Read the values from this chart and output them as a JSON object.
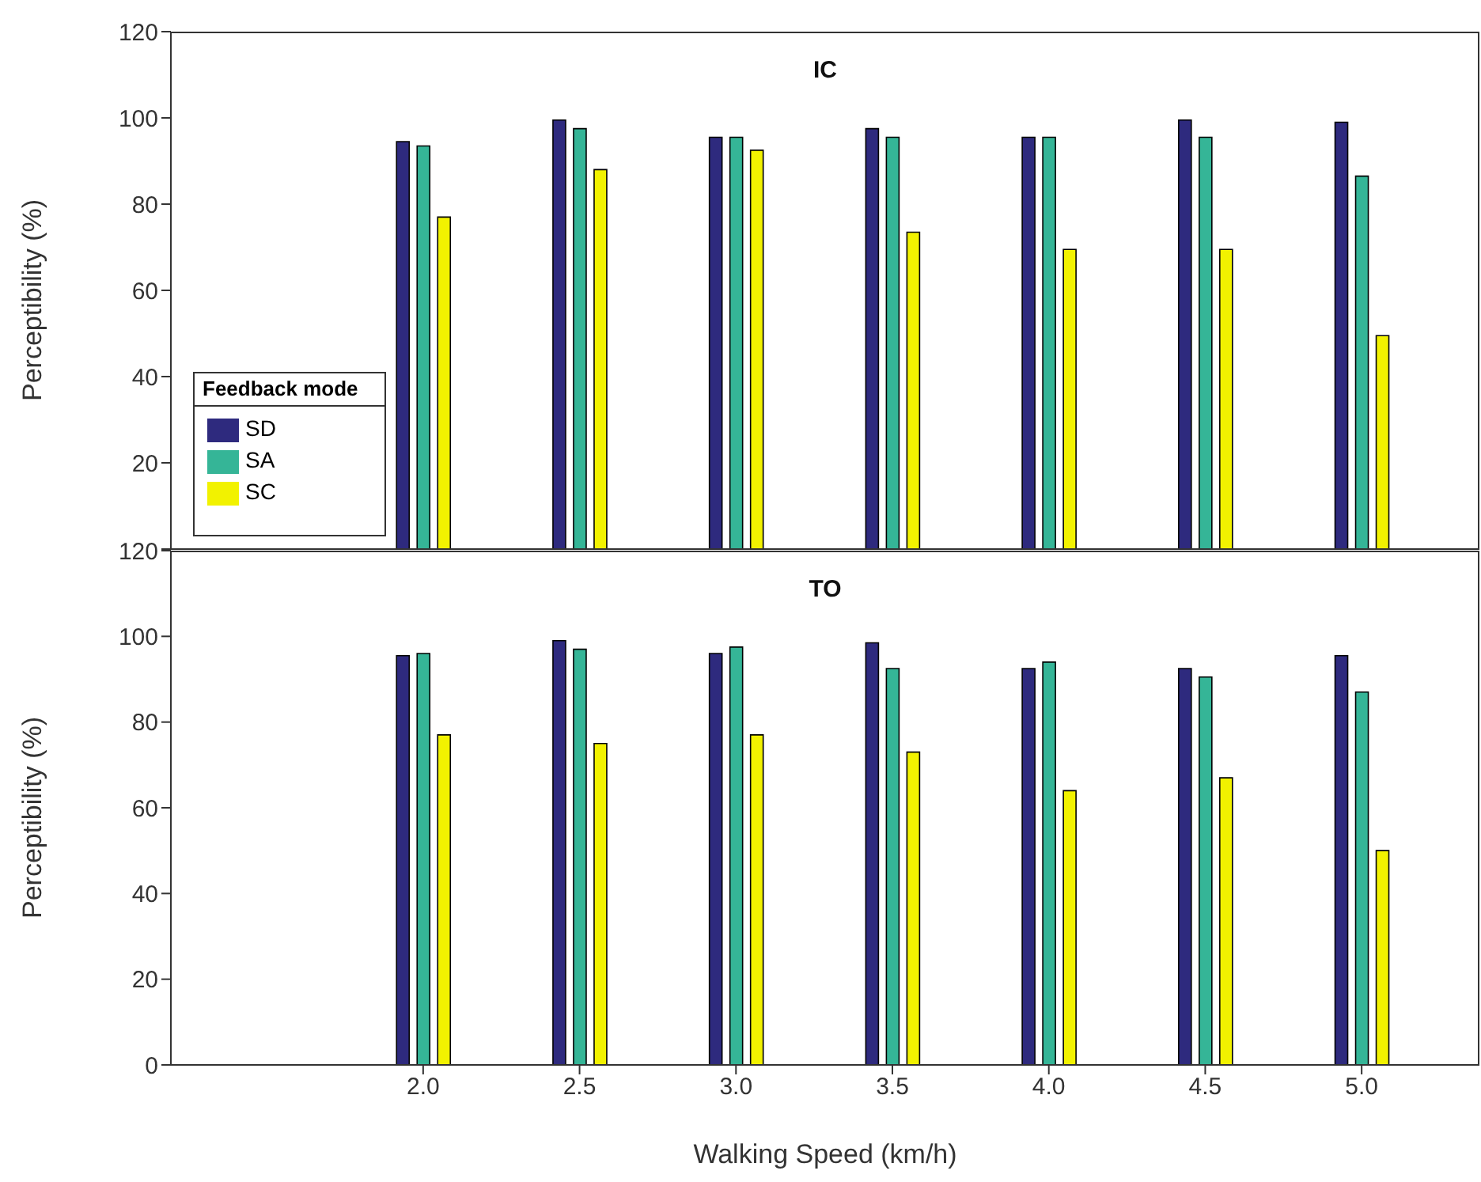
{
  "chart_data": [
    {
      "type": "bar",
      "title": "IC",
      "ylabel": "Perceptibility (%)",
      "legend_title": "Feedback mode",
      "legend": "bottom left",
      "tick_labels": "y",
      "categories": [
        "2.0",
        "2.5",
        "3.0",
        "3.5",
        "4.0",
        "4.5",
        "5.0"
      ],
      "series": [
        {
          "name": "SD",
          "color": "#2e2a7e",
          "values": [
            94.5,
            99.5,
            95.5,
            97.5,
            95.5,
            99.5,
            99
          ]
        },
        {
          "name": "SA",
          "color": "#35b597",
          "values": [
            93.5,
            97.5,
            95.5,
            95.5,
            95.5,
            95.5,
            86.5
          ]
        },
        {
          "name": "SC",
          "color": "#f2f200",
          "values": [
            77,
            88,
            92.5,
            73.5,
            69.5,
            69.5,
            49.5
          ]
        }
      ],
      "ylim": [
        0,
        120
      ],
      "yticks": [
        {
          "value": 0,
          "label": null
        },
        20,
        40,
        60,
        80,
        100,
        120
      ],
      "grid": false
    },
    {
      "type": "bar",
      "title": "TO",
      "ylabel": "Perceptibility (%)",
      "xlabel": "Walking Speed (km/h)",
      "categories": [
        "2.0",
        "2.5",
        "3.0",
        "3.5",
        "4.0",
        "4.5",
        "5.0"
      ],
      "series": [
        {
          "color": "#2e2a7e",
          "values": [
            95.5,
            99,
            96,
            98.5,
            92.5,
            92.5,
            95.5
          ]
        },
        {
          "color": "#35b597",
          "values": [
            96,
            97,
            97.5,
            92.5,
            94,
            90.5,
            87
          ]
        },
        {
          "color": "#f2f200",
          "values": [
            77,
            75,
            77,
            73,
            64,
            67,
            50
          ]
        }
      ],
      "ylim": [
        0,
        120
      ],
      "yticks": [
        0,
        20,
        40,
        60,
        80,
        100,
        120
      ],
      "grid": false
    }
  ]
}
